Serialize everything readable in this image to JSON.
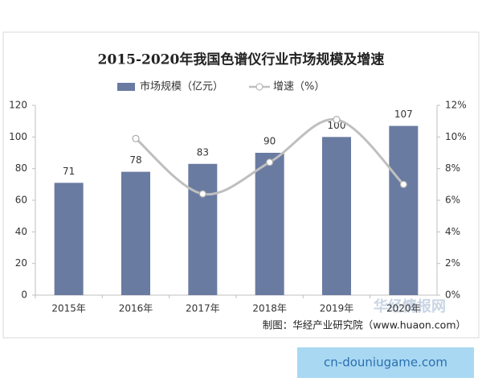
{
  "chart_data": {
    "type": "bar",
    "title": "2015-2020年我国色谱仪行业市场规模及增速",
    "categories": [
      "2015年",
      "2016年",
      "2017年",
      "2018年",
      "2019年",
      "2020年"
    ],
    "series": [
      {
        "name": "市场规模（亿元）",
        "type": "bar",
        "color": "#6a7ba2",
        "values": [
          71,
          78,
          83,
          90,
          100,
          107
        ]
      },
      {
        "name": "增速（%）",
        "type": "line",
        "axis": "y2",
        "color": "#bfbfbf",
        "values": [
          null,
          9.9,
          6.4,
          8.4,
          11.1,
          7.0
        ]
      }
    ],
    "ylim": [
      0,
      120
    ],
    "yticks": [
      0,
      20,
      40,
      60,
      80,
      100,
      120
    ],
    "y2lim": [
      0,
      12
    ],
    "y2ticks": [
      {
        "value": 0,
        "label": "0%"
      },
      {
        "value": 2,
        "label": "2%"
      },
      {
        "value": 4,
        "label": "4%"
      },
      {
        "value": 6,
        "label": "6%"
      },
      {
        "value": 8,
        "label": "8%"
      },
      {
        "value": 10,
        "label": "10%"
      },
      {
        "value": 12,
        "label": "12%"
      }
    ],
    "grid": false,
    "legend": "top",
    "source": "制图：华经产业研究院（www.huaon.com）"
  },
  "watermarks": {
    "chart": "华经情报网",
    "footer": "cn-douniugame.com"
  }
}
